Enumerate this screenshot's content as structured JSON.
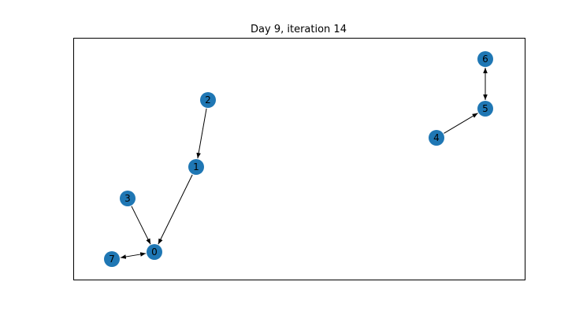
{
  "title": "Day 9, iteration 14",
  "node_color": "#1f77b4",
  "edge_color": "#000000",
  "nodes": [
    {
      "id": "0",
      "label": "0"
    },
    {
      "id": "1",
      "label": "1"
    },
    {
      "id": "2",
      "label": "2"
    },
    {
      "id": "3",
      "label": "3"
    },
    {
      "id": "4",
      "label": "4"
    },
    {
      "id": "5",
      "label": "5"
    },
    {
      "id": "6",
      "label": "6"
    },
    {
      "id": "7",
      "label": "7"
    }
  ],
  "edges": [
    {
      "source": "2",
      "target": "1",
      "bidirectional": false
    },
    {
      "source": "1",
      "target": "0",
      "bidirectional": false
    },
    {
      "source": "3",
      "target": "0",
      "bidirectional": false
    },
    {
      "source": "0",
      "target": "7",
      "bidirectional": true
    },
    {
      "source": "4",
      "target": "5",
      "bidirectional": false
    },
    {
      "source": "6",
      "target": "5",
      "bidirectional": true
    }
  ]
}
